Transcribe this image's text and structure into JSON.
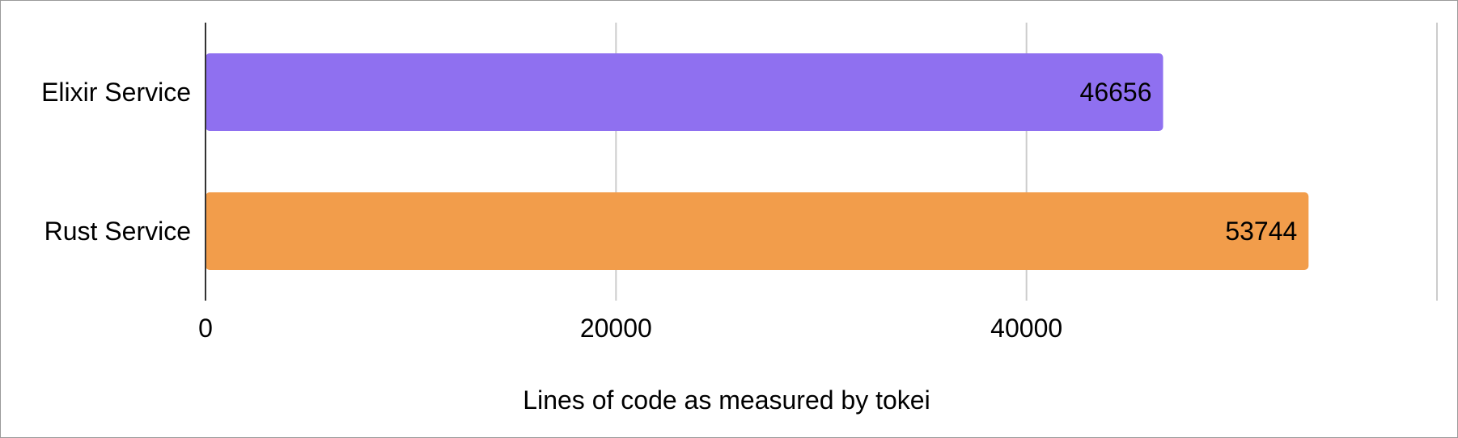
{
  "chart_data": {
    "type": "bar",
    "orientation": "horizontal",
    "categories": [
      "Elixir Service",
      "Rust Service"
    ],
    "values": [
      46656,
      53744
    ],
    "colors": [
      "#8f70f0",
      "#f29d4b"
    ],
    "data_labels": [
      "46656",
      "53744"
    ],
    "xlabel": "Lines of code as measured by tokei",
    "xlim": [
      0,
      60000
    ],
    "xticks": [
      0,
      20000,
      40000
    ],
    "xtick_labels": [
      "0",
      "20000",
      "40000"
    ],
    "grid": true,
    "legend": "none"
  }
}
